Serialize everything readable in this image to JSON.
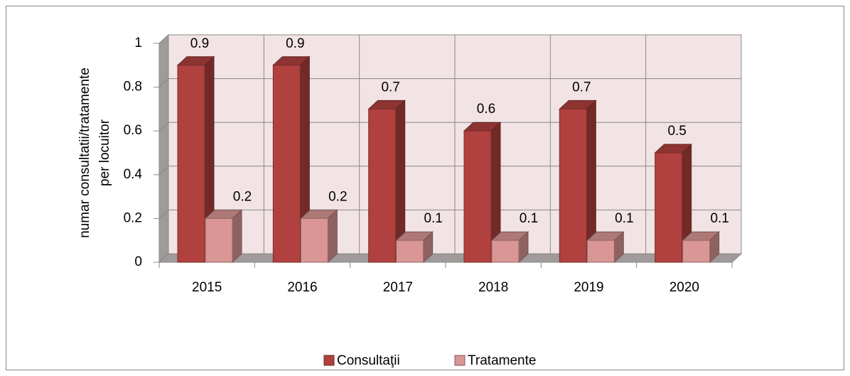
{
  "chart_data": {
    "type": "bar3d",
    "y_label": [
      "numar consultatii/tratamente",
      "per locuitor"
    ],
    "categories": [
      "2015",
      "2016",
      "2017",
      "2018",
      "2019",
      "2020"
    ],
    "series": [
      {
        "name": "Consultaţii",
        "color": "#b0413e",
        "values": [
          0.9,
          0.9,
          0.7,
          0.6,
          0.7,
          0.5
        ]
      },
      {
        "name": "Tratamente",
        "color": "#d99694",
        "values": [
          0.2,
          0.2,
          0.1,
          0.1,
          0.1,
          0.1
        ]
      }
    ],
    "ylim": [
      0,
      1
    ],
    "yticks": [
      0,
      0.2,
      0.4,
      0.6,
      0.8,
      1
    ],
    "grid": true
  }
}
